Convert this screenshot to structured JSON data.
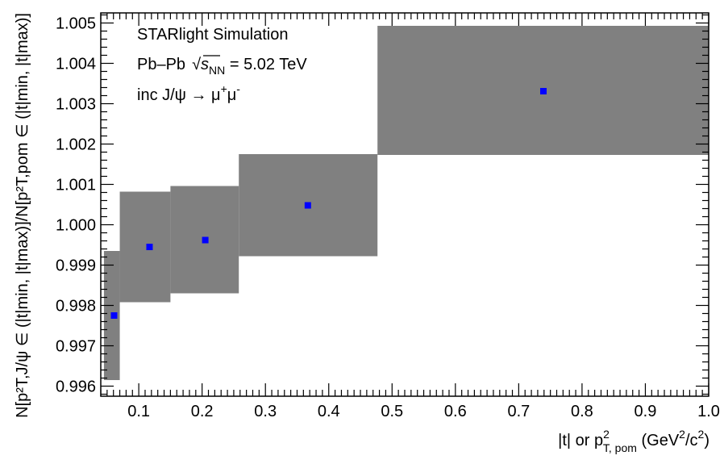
{
  "chart_data": {
    "type": "scatter",
    "annotations": {
      "line1": "STARlight Simulation",
      "line2_prefix": "Pb–Pb",
      "line2_sqrt": "√",
      "line2_s": "s",
      "line2_sub": "NN",
      "line2_suffix": " = 5.02 TeV",
      "line3_prefix": "inc J/ψ → μ",
      "line3_sup1": "+",
      "line3_mu": "μ",
      "line3_sup2": "-"
    },
    "xlabel": {
      "t": "|t|",
      "or": " or p",
      "sup": "2",
      "sub": "T, pom",
      "unit_open": " (GeV",
      "unit_sup": "2",
      "unit_slash": "/c",
      "unit_sup2": "2",
      "unit_close": ")"
    },
    "ylabel": "N[p²T,J/ψ ∈ (|t|min, |t|max)]/N[p²T,pom ∈ (|t|min, |t|max)]",
    "xlim": [
      0.04,
      1.0
    ],
    "ylim": [
      0.99575,
      1.00525
    ],
    "x_ticks": [
      "0.1",
      "0.2",
      "0.3",
      "0.4",
      "0.5",
      "0.6",
      "0.7",
      "0.8",
      "0.9",
      "1.0"
    ],
    "y_ticks": [
      "0.996",
      "0.997",
      "0.998",
      "0.999",
      "1.000",
      "1.001",
      "1.002",
      "1.003",
      "1.004",
      "1.005"
    ],
    "band_color": "#808080",
    "marker_color": "#0000ff",
    "series": [
      {
        "points": [
          {
            "x": 0.061,
            "y": 0.99775,
            "x_lo": 0.045,
            "x_hi": 0.07,
            "err_lo": 0.99615,
            "err_hi": 0.99935
          },
          {
            "x": 0.117,
            "y": 0.99945,
            "x_lo": 0.07,
            "x_hi": 0.15,
            "err_lo": 0.99808,
            "err_hi": 1.00082
          },
          {
            "x": 0.205,
            "y": 0.99962,
            "x_lo": 0.15,
            "x_hi": 0.258,
            "err_lo": 0.9983,
            "err_hi": 1.00096
          },
          {
            "x": 0.367,
            "y": 1.00048,
            "x_lo": 0.258,
            "x_hi": 0.477,
            "err_lo": 0.99922,
            "err_hi": 1.00175
          },
          {
            "x": 0.739,
            "y": 1.00331,
            "x_lo": 0.477,
            "x_hi": 1.0,
            "err_lo": 1.00173,
            "err_hi": 1.00493
          }
        ]
      }
    ]
  }
}
